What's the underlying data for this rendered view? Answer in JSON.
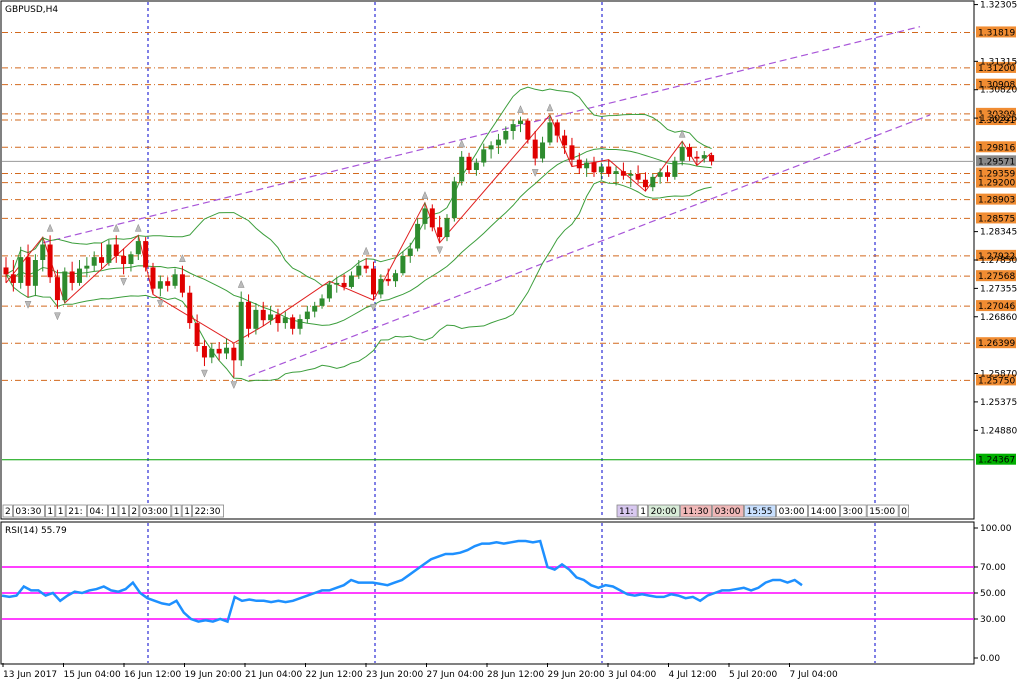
{
  "window": {
    "symbol_title": "GBPUSD,H4",
    "rsi_title": "RSI(14) 55.79"
  },
  "colors": {
    "bull": "#2e8b2e",
    "bear": "#e00000",
    "bollinger": "#3c9e3c",
    "zigzag": "#e02020",
    "level_line": "#d2691e",
    "level_tag_bg": "#f08c32",
    "channel": "#a855d8",
    "rsi_line": "#1e90ff",
    "rsi_level": "#ff00ff",
    "separator": "#0000cc",
    "current_price_tag": "#888888",
    "bottom_green_line": "#00a000"
  },
  "chart_data": [
    {
      "type": "candlestick",
      "title": "GBPUSD,H4",
      "ylim": [
        1.2335,
        1.3235
      ],
      "y_ticks": [
        "1.32305",
        "1.31315",
        "1.30820",
        "1.30325",
        "1.28345",
        "1.27850",
        "1.27355",
        "1.26860",
        "1.25870",
        "1.25375",
        "1.24880"
      ],
      "price_levels": [
        {
          "value": 1.31819,
          "label": "1.31819"
        },
        {
          "value": 1.312,
          "label": "1.31200"
        },
        {
          "value": 1.30908,
          "label": "1.30908"
        },
        {
          "value": 1.30399,
          "label": "1.30399"
        },
        {
          "value": 1.30291,
          "label": "1.30291"
        },
        {
          "value": 1.29816,
          "label": "1.29816"
        },
        {
          "value": 1.29359,
          "label": "1.29359"
        },
        {
          "value": 1.292,
          "label": "1.29200"
        },
        {
          "value": 1.28903,
          "label": "1.28903"
        },
        {
          "value": 1.28575,
          "label": "1.28575"
        },
        {
          "value": 1.27922,
          "label": "1.27922"
        },
        {
          "value": 1.27568,
          "label": "1.27568"
        },
        {
          "value": 1.27046,
          "label": "1.27046"
        },
        {
          "value": 1.26399,
          "label": "1.26399"
        },
        {
          "value": 1.2575,
          "label": "1.25750"
        }
      ],
      "current_price": {
        "value": 1.29571,
        "label": "1.29571"
      },
      "green_level": {
        "value": 1.24367,
        "label": "1.24367"
      },
      "candles": [
        [
          1.2772,
          1.279,
          1.2745,
          1.276
        ],
        [
          1.276,
          1.2785,
          1.273,
          1.2745
        ],
        [
          1.2745,
          1.2808,
          1.2735,
          1.279
        ],
        [
          1.279,
          1.2812,
          1.272,
          1.274
        ],
        [
          1.274,
          1.2795,
          1.2722,
          1.2785
        ],
        [
          1.2785,
          1.2825,
          1.2765,
          1.2812
        ],
        [
          1.2812,
          1.2828,
          1.2745,
          1.2755
        ],
        [
          1.2755,
          1.2768,
          1.27,
          1.2715
        ],
        [
          1.2715,
          1.2772,
          1.271,
          1.2765
        ],
        [
          1.2765,
          1.2782,
          1.2732,
          1.2745
        ],
        [
          1.2745,
          1.2785,
          1.274,
          1.277
        ],
        [
          1.277,
          1.279,
          1.2755,
          1.2775
        ],
        [
          1.2775,
          1.28,
          1.2765,
          1.279
        ],
        [
          1.279,
          1.2815,
          1.277,
          1.278
        ],
        [
          1.278,
          1.282,
          1.2775,
          1.2812
        ],
        [
          1.2812,
          1.2828,
          1.278,
          1.2792
        ],
        [
          1.2792,
          1.2805,
          1.276,
          1.2778
        ],
        [
          1.2778,
          1.28,
          1.2765,
          1.2795
        ],
        [
          1.2795,
          1.2828,
          1.2785,
          1.2818
        ],
        [
          1.2818,
          1.2825,
          1.2765,
          1.2772
        ],
        [
          1.2772,
          1.278,
          1.2725,
          1.2735
        ],
        [
          1.2735,
          1.2758,
          1.2722,
          1.2748
        ],
        [
          1.2748,
          1.2755,
          1.273,
          1.274
        ],
        [
          1.274,
          1.277,
          1.2735,
          1.276
        ],
        [
          1.276,
          1.2775,
          1.272,
          1.2728
        ],
        [
          1.2728,
          1.274,
          1.2665,
          1.2675
        ],
        [
          1.2675,
          1.269,
          1.2625,
          1.2635
        ],
        [
          1.2635,
          1.2645,
          1.26,
          1.2615
        ],
        [
          1.2615,
          1.264,
          1.2605,
          1.263
        ],
        [
          1.263,
          1.2642,
          1.261,
          1.2622
        ],
        [
          1.2622,
          1.2648,
          1.2612,
          1.2632
        ],
        [
          1.2632,
          1.264,
          1.258,
          1.261
        ],
        [
          1.261,
          1.273,
          1.26,
          1.2712
        ],
        [
          1.2712,
          1.2725,
          1.265,
          1.2665
        ],
        [
          1.2665,
          1.271,
          1.2655,
          1.2698
        ],
        [
          1.2698,
          1.2712,
          1.267,
          1.268
        ],
        [
          1.268,
          1.2705,
          1.2672,
          1.269
        ],
        [
          1.269,
          1.27,
          1.266,
          1.2675
        ],
        [
          1.2675,
          1.2695,
          1.2665,
          1.2685
        ],
        [
          1.2685,
          1.269,
          1.2655,
          1.2665
        ],
        [
          1.2665,
          1.269,
          1.2655,
          1.2682
        ],
        [
          1.2682,
          1.2705,
          1.2675,
          1.2695
        ],
        [
          1.2695,
          1.2712,
          1.2685,
          1.2705
        ],
        [
          1.2705,
          1.2725,
          1.27,
          1.2718
        ],
        [
          1.2718,
          1.2748,
          1.2712,
          1.2742
        ],
        [
          1.2742,
          1.2755,
          1.2728,
          1.2745
        ],
        [
          1.2745,
          1.276,
          1.2732,
          1.2738
        ],
        [
          1.2738,
          1.2765,
          1.2735,
          1.2758
        ],
        [
          1.2758,
          1.2785,
          1.2752,
          1.2775
        ],
        [
          1.2775,
          1.2788,
          1.2762,
          1.277
        ],
        [
          1.277,
          1.2782,
          1.2715,
          1.2725
        ],
        [
          1.2725,
          1.276,
          1.2718,
          1.2752
        ],
        [
          1.2752,
          1.277,
          1.274,
          1.2748
        ],
        [
          1.2748,
          1.2768,
          1.2738,
          1.2762
        ],
        [
          1.2762,
          1.28,
          1.2758,
          1.2792
        ],
        [
          1.2792,
          1.2815,
          1.278,
          1.2805
        ],
        [
          1.2805,
          1.2858,
          1.28,
          1.2848
        ],
        [
          1.2848,
          1.2885,
          1.2838,
          1.2875
        ],
        [
          1.2875,
          1.2882,
          1.2835,
          1.2842
        ],
        [
          1.2842,
          1.2862,
          1.2815,
          1.2825
        ],
        [
          1.2825,
          1.2865,
          1.2818,
          1.2858
        ],
        [
          1.2858,
          1.293,
          1.2852,
          1.2922
        ],
        [
          1.2922,
          1.2975,
          1.2915,
          1.2965
        ],
        [
          1.2965,
          1.2972,
          1.2935,
          1.2942
        ],
        [
          1.2942,
          1.2962,
          1.2932,
          1.2955
        ],
        [
          1.2955,
          1.2988,
          1.2948,
          1.2978
        ],
        [
          1.2978,
          1.2992,
          1.2962,
          1.2985
        ],
        [
          1.2985,
          1.3005,
          1.297,
          1.2995
        ],
        [
          1.2995,
          1.3018,
          1.2988,
          1.301
        ],
        [
          1.301,
          1.303,
          1.2995,
          1.3022
        ],
        [
          1.3022,
          1.3035,
          1.3008,
          1.3028
        ],
        [
          1.3028,
          1.3032,
          1.2988,
          1.2995
        ],
        [
          1.2995,
          1.301,
          1.295,
          1.2962
        ],
        [
          1.2962,
          1.3,
          1.2955,
          1.299
        ],
        [
          1.299,
          1.3038,
          1.2985,
          1.3025
        ],
        [
          1.3025,
          1.303,
          1.299,
          1.3002
        ],
        [
          1.3002,
          1.3012,
          1.297,
          1.2985
        ],
        [
          1.2985,
          1.2998,
          1.2948,
          1.296
        ],
        [
          1.296,
          1.2972,
          1.2935,
          1.2945
        ],
        [
          1.2945,
          1.2962,
          1.293,
          1.2955
        ],
        [
          1.2955,
          1.2965,
          1.293,
          1.2938
        ],
        [
          1.2938,
          1.2955,
          1.2925,
          1.2948
        ],
        [
          1.2948,
          1.296,
          1.293,
          1.2935
        ],
        [
          1.2935,
          1.2948,
          1.2915,
          1.294
        ],
        [
          1.294,
          1.2955,
          1.2925,
          1.2932
        ],
        [
          1.2932,
          1.2942,
          1.2912,
          1.2935
        ],
        [
          1.2935,
          1.295,
          1.2918,
          1.2925
        ],
        [
          1.2925,
          1.2938,
          1.2905,
          1.2912
        ],
        [
          1.2912,
          1.2935,
          1.2905,
          1.293
        ],
        [
          1.293,
          1.2945,
          1.2918,
          1.2938
        ],
        [
          1.2938,
          1.295,
          1.2922,
          1.293
        ],
        [
          1.293,
          1.2965,
          1.2925,
          1.2958
        ],
        [
          1.2958,
          1.2992,
          1.295,
          1.2982
        ],
        [
          1.2982,
          1.2988,
          1.2958,
          1.2965
        ],
        [
          1.2965,
          1.2975,
          1.295,
          1.2962
        ],
        [
          1.2962,
          1.2975,
          1.2955,
          1.2968
        ],
        [
          1.2968,
          1.2972,
          1.295,
          1.2957
        ]
      ],
      "x_labels": [
        "13 Jun 2017",
        "15 Jun 04:00",
        "16 Jun 12:00",
        "19 Jun 20:00",
        "21 Jun 04:00",
        "22 Jun 12:00",
        "23 Jun 20:00",
        "27 Jun 04:00",
        "28 Jun 12:00",
        "29 Jun 20:00",
        "3 Jul 04:00",
        "4 Jul 12:00",
        "5 Jul 20:00",
        "7 Jul 04:00"
      ],
      "time_tags_left": [
        "2",
        "03:30",
        "1",
        "1",
        "21:",
        "04:",
        "1",
        "1",
        "2",
        "03:00",
        "1",
        "1",
        "22:30"
      ],
      "time_tags_right": [
        "11:",
        "1",
        "20:00",
        "11:30",
        "03:00",
        "15:55",
        "03:00",
        "14:00",
        "3:00",
        "15:00",
        "0"
      ]
    },
    {
      "type": "line",
      "title": "RSI(14) 55.79",
      "ylim": [
        0,
        100
      ],
      "y_ticks": [
        "100.00",
        "70.00",
        "50.00",
        "30.00",
        "0.00"
      ],
      "levels": [
        70,
        50,
        30
      ],
      "values": [
        48,
        47,
        48,
        55,
        52,
        52,
        48,
        50,
        44,
        48,
        51,
        50,
        52,
        53,
        55,
        52,
        51,
        53,
        58,
        50,
        46,
        44,
        42,
        41,
        44,
        35,
        30,
        28,
        29,
        28,
        30,
        28,
        47,
        44,
        45,
        44,
        44,
        43,
        44,
        43,
        44,
        46,
        48,
        50,
        52,
        52,
        54,
        56,
        60,
        58,
        58,
        58,
        57,
        56,
        58,
        60,
        64,
        68,
        72,
        76,
        78,
        80,
        80,
        81,
        83,
        86,
        88,
        88,
        89,
        88,
        89,
        90,
        90,
        89,
        90,
        70,
        68,
        72,
        68,
        62,
        60,
        56,
        54,
        56,
        55,
        52,
        49,
        48,
        49,
        48,
        47,
        47,
        49,
        48,
        46,
        47,
        44,
        48,
        50,
        52,
        52,
        53,
        54,
        52,
        54,
        58,
        60,
        60,
        58,
        60,
        56
      ]
    }
  ]
}
